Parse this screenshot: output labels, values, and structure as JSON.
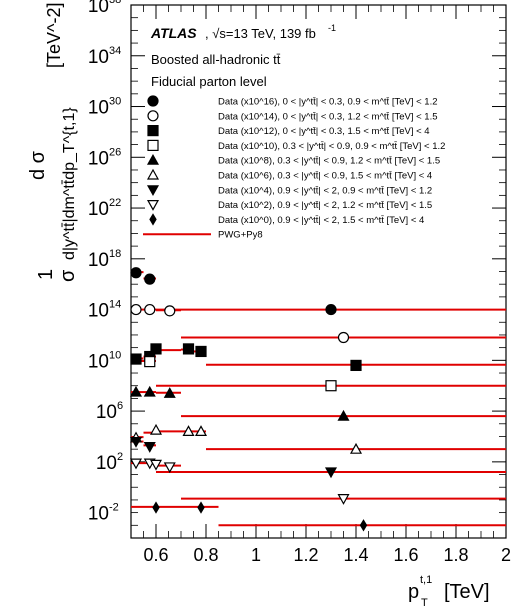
{
  "chart_data": {
    "type": "scatter",
    "experiment": "ATLAS",
    "energy_label": ", √s=13 TeV, 139 fb",
    "lumi_exp": "-1",
    "subtitle1": "Boosted all-hadronic tt̄",
    "subtitle2": "Fiducial parton level",
    "xlabel": "p",
    "xlabel_sub": "T",
    "xlabel_sup": "t,1",
    "xlabel_unit": "[TeV]",
    "ylabel_frac_num": "1",
    "ylabel_frac_den": "σ",
    "ylabel_num": "d σ",
    "ylabel_den": "d|y^tt̄|dm^tt̄dp_T^{t,1}",
    "ylabel_unit": "[TeV^-2]",
    "xlim": [
      0.5,
      2.0
    ],
    "ylim_log10": [
      -4,
      38
    ],
    "log_y": true,
    "x_ticks": [
      "0.6",
      "0.8",
      "1",
      "1.2",
      "1.4",
      "1.6",
      "1.8",
      "2"
    ],
    "x_tick_values": [
      0.6,
      0.8,
      1.0,
      1.2,
      1.4,
      1.6,
      1.8,
      2.0
    ],
    "y_ticks_exp": [
      "38",
      "34",
      "30",
      "26",
      "22",
      "18",
      "14",
      "10",
      "6",
      "2",
      "-2"
    ],
    "prediction_label": "PWG+Py8",
    "prediction_color": "#e00000",
    "series": [
      {
        "name": "Data (x10^16), 0 < |y^tt̄| < 0.3, 0.9 < m^tt̄ [TeV] < 1.2",
        "marker": "circle-filled",
        "points": [
          [
            0.52,
            16.9
          ],
          [
            0.575,
            16.4
          ],
          [
            1.3,
            14.0
          ]
        ],
        "pred": [
          [
            0.5,
            0.55,
            16.95
          ],
          [
            0.55,
            0.6,
            16.45
          ],
          [
            0.6,
            2.0,
            14.0
          ]
        ]
      },
      {
        "name": "Data (x10^14), 0 < |y^tt̄| < 0.3, 1.2 < m^tt̄ [TeV] < 1.5",
        "marker": "circle-open",
        "points": [
          [
            0.52,
            14.0
          ],
          [
            0.575,
            14.0
          ],
          [
            0.655,
            13.9
          ],
          [
            1.35,
            11.8
          ]
        ],
        "pred": [
          [
            0.5,
            0.55,
            14.0
          ],
          [
            0.55,
            0.6,
            14.0
          ],
          [
            0.6,
            0.7,
            13.95
          ],
          [
            0.7,
            2.0,
            11.8
          ]
        ]
      },
      {
        "name": "Data (x10^12), 0 < |y^tt̄| < 0.3, 1.5 < m^tt̄ [TeV] < 4",
        "marker": "square-filled",
        "points": [
          [
            0.52,
            10.1
          ],
          [
            0.575,
            10.3
          ],
          [
            0.6,
            10.9
          ],
          [
            0.73,
            10.9
          ],
          [
            0.78,
            10.7
          ],
          [
            1.4,
            9.6
          ]
        ],
        "pred": [
          [
            0.5,
            0.55,
            10.15
          ],
          [
            0.55,
            0.6,
            10.3
          ],
          [
            0.6,
            0.7,
            10.8
          ],
          [
            0.7,
            0.75,
            10.85
          ],
          [
            0.75,
            0.8,
            10.7
          ],
          [
            0.8,
            2.0,
            9.65
          ]
        ]
      },
      {
        "name": "Data (x10^10), 0.3 < |y^tt̄| < 0.9, 0.9 < m^tt̄ [TeV] < 1.2",
        "marker": "square-open",
        "points": [
          [
            0.575,
            9.9
          ],
          [
            1.3,
            8.0
          ]
        ],
        "pred": [
          [
            0.5,
            0.6,
            9.95
          ],
          [
            0.6,
            2.0,
            8.0
          ]
        ]
      },
      {
        "name": "Data (x10^8), 0.3 < |y^tt̄| < 0.9, 1.2 < m^tt̄ [TeV] < 1.5",
        "marker": "triangle-up-filled",
        "points": [
          [
            0.52,
            7.5
          ],
          [
            0.575,
            7.5
          ],
          [
            0.655,
            7.4
          ],
          [
            1.35,
            5.6
          ]
        ],
        "pred": [
          [
            0.5,
            0.55,
            7.5
          ],
          [
            0.55,
            0.6,
            7.5
          ],
          [
            0.6,
            0.7,
            7.45
          ],
          [
            0.7,
            2.0,
            5.6
          ]
        ]
      },
      {
        "name": "Data (x10^6), 0.3 < |y^tt̄| < 0.9, 1.5 < m^tt̄ [TeV] < 4",
        "marker": "triangle-up-open",
        "points": [
          [
            0.52,
            3.9
          ],
          [
            0.6,
            4.5
          ],
          [
            0.73,
            4.4
          ],
          [
            0.78,
            4.4
          ],
          [
            1.4,
            3.0
          ]
        ],
        "pred": [
          [
            0.5,
            0.55,
            3.95
          ],
          [
            0.55,
            0.6,
            4.3
          ],
          [
            0.6,
            0.75,
            4.4
          ],
          [
            0.75,
            0.8,
            4.4
          ],
          [
            0.8,
            2.0,
            3.0
          ]
        ]
      },
      {
        "name": "Data (x10^4), 0.9 < |y^tt̄| < 2, 0.9 < m^tt̄ [TeV] < 1.2",
        "marker": "triangle-down-filled",
        "points": [
          [
            0.52,
            3.6
          ],
          [
            0.575,
            3.2
          ],
          [
            1.3,
            1.2
          ]
        ],
        "pred": [
          [
            0.5,
            0.55,
            3.6
          ],
          [
            0.55,
            0.6,
            3.3
          ],
          [
            0.6,
            2.0,
            1.2
          ]
        ]
      },
      {
        "name": "Data (x10^2), 0.9 < |y^tt̄| < 2, 1.2 < m^tt̄ [TeV] < 1.5",
        "marker": "triangle-down-open",
        "points": [
          [
            0.52,
            1.9
          ],
          [
            0.575,
            1.9
          ],
          [
            0.6,
            1.8
          ],
          [
            0.655,
            1.6
          ],
          [
            1.35,
            -0.9
          ]
        ],
        "pred": [
          [
            0.5,
            0.55,
            1.9
          ],
          [
            0.55,
            0.6,
            1.9
          ],
          [
            0.6,
            0.7,
            1.7
          ],
          [
            0.7,
            2.0,
            -0.9
          ]
        ]
      },
      {
        "name": "Data (x10^0), 0.9 < |y^tt̄| < 2, 1.5 < m^tt̄ [TeV] < 4",
        "marker": "diamond-filled",
        "points": [
          [
            0.6,
            -1.6
          ],
          [
            0.78,
            -1.6
          ],
          [
            1.43,
            -3.0
          ]
        ],
        "pred": [
          [
            0.5,
            0.7,
            -1.55
          ],
          [
            0.7,
            0.85,
            -1.55
          ],
          [
            0.85,
            2.0,
            -3.0
          ]
        ]
      }
    ]
  }
}
